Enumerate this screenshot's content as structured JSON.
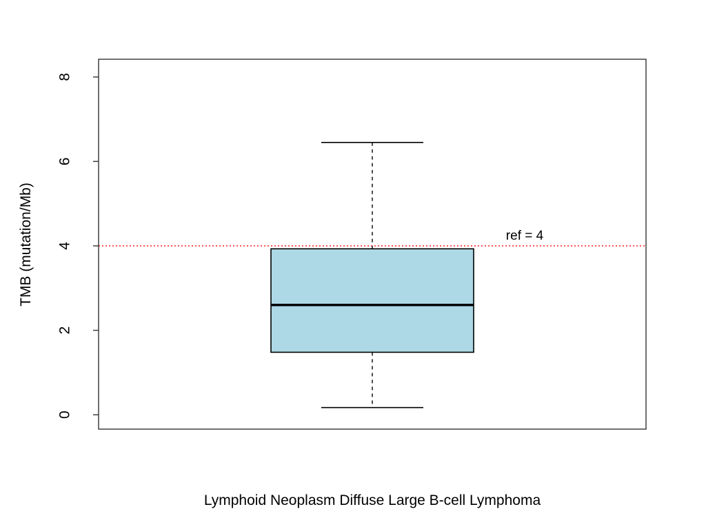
{
  "figure": {
    "background": "#FFFFFF"
  },
  "chart_data": {
    "type": "boxplot",
    "title": "",
    "xlabel": "Lymphoid Neoplasm Diffuse Large B-cell Lymphoma",
    "ylabel": "TMB (mutation/Mb)",
    "ylim": [
      -0.34,
      8.42
    ],
    "yticks": [
      0,
      2,
      4,
      6,
      8
    ],
    "grid": false,
    "legend": null,
    "boxes": [
      {
        "category": "Lymphoid Neoplasm Diffuse Large B-cell Lymphoma",
        "whisker_low": 0.17,
        "q1": 1.48,
        "median": 2.6,
        "q3": 3.93,
        "whisker_high": 6.45,
        "outliers": []
      }
    ],
    "ref_line": {
      "value": 4,
      "label": "ref = 4",
      "color": "#FF0000",
      "style": "dotted"
    },
    "colors": {
      "box_fill": "#ADD8E6",
      "box_border": "#000000",
      "median": "#000000",
      "whisker": "#000000",
      "axis": "#333333",
      "text": "#000000"
    }
  }
}
